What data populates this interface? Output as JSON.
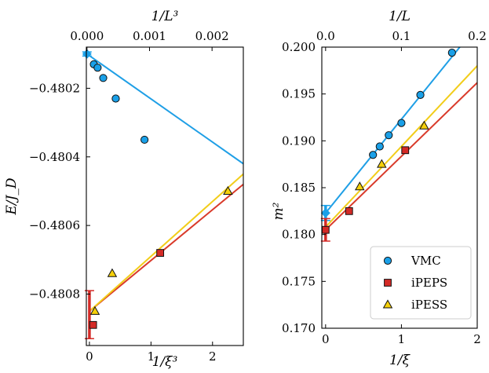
{
  "colors": {
    "vmc": "#1aa0e8",
    "ipeps": "#d42a26",
    "ipess": "#f5d00a",
    "vmc_line": "#1f9fe6",
    "ipeps_line": "#d93a2a",
    "ipess_line": "#f2cd1a"
  },
  "chart_data": [
    {
      "type": "scatter",
      "panel": "left",
      "ylabel": "E/J_D",
      "xlabel": "1/ξ³",
      "top_xlabel": "1/L³",
      "xlim": [
        -0.05,
        2.5
      ],
      "ylim": [
        -0.48095,
        -0.48008
      ],
      "top_xlim": [
        -1e-05,
        0.0025
      ],
      "x_ticks": [
        0,
        1,
        2
      ],
      "x_tick_labels": [
        "0",
        "1",
        "2"
      ],
      "top_ticks": [
        0.0,
        0.001,
        0.002
      ],
      "top_tick_labels": [
        "0.000",
        "0.001",
        "0.002"
      ],
      "y_ticks": [
        -0.4802,
        -0.4804,
        -0.4806,
        -0.4808
      ],
      "y_tick_labels": [
        "−0.4802",
        "−0.4804",
        "−0.4806",
        "−0.4808"
      ],
      "series": [
        {
          "name": "VMC",
          "marker": "circle",
          "axis": "top",
          "points": [
            [
              0.00011,
              -0.48013
            ],
            [
              0.00017,
              -0.48014
            ],
            [
              0.00026,
              -0.48017
            ],
            [
              0.00046,
              -0.48023
            ],
            [
              0.00092,
              -0.48035
            ]
          ],
          "fit": [
            [
              0.0,
              -0.4801
            ],
            [
              0.0025,
              -0.48042
            ]
          ],
          "extrapolated": {
            "x": 0.0,
            "y": -0.4801,
            "err": 6e-06
          }
        },
        {
          "name": "iPEPS",
          "marker": "square",
          "axis": "bottom",
          "points": [
            [
              0.06,
              -0.48089
            ],
            [
              1.15,
              -0.48068
            ]
          ],
          "fit": [
            [
              0.0,
              -0.48085
            ],
            [
              2.5,
              -0.48048
            ]
          ],
          "extrapolated": {
            "x": 0.0,
            "y": -0.48086,
            "err": 7e-05
          }
        },
        {
          "name": "iPESS",
          "marker": "triangle",
          "axis": "bottom",
          "points": [
            [
              0.09,
              -0.48085
            ],
            [
              0.37,
              -0.48074
            ],
            [
              2.25,
              -0.4805
            ]
          ],
          "fit": [
            [
              0.0,
              -0.48085
            ],
            [
              2.5,
              -0.48045
            ]
          ]
        }
      ]
    },
    {
      "type": "scatter",
      "panel": "right",
      "ylabel": "m²",
      "xlabel": "1/ξ",
      "top_xlabel": "1/L",
      "xlim": [
        -0.05,
        2.0
      ],
      "ylim": [
        0.17,
        0.2
      ],
      "top_xlim": [
        -0.005,
        0.2
      ],
      "x_ticks": [
        0,
        1,
        2
      ],
      "x_tick_labels": [
        "0",
        "1",
        "2"
      ],
      "top_ticks": [
        0.0,
        0.1,
        0.2
      ],
      "top_tick_labels": [
        "0.0",
        "0.1",
        "0.2"
      ],
      "y_ticks": [
        0.17,
        0.175,
        0.18,
        0.185,
        0.19,
        0.195,
        0.2
      ],
      "y_tick_labels": [
        "0.170",
        "0.175",
        "0.180",
        "0.185",
        "0.190",
        "0.195",
        "0.200"
      ],
      "series": [
        {
          "name": "VMC",
          "marker": "circle",
          "axis": "top",
          "points": [
            [
              0.0625,
              0.1885
            ],
            [
              0.0714,
              0.1894
            ],
            [
              0.0833,
              0.1906
            ],
            [
              0.1,
              0.1919
            ],
            [
              0.125,
              0.1949
            ],
            [
              0.1667,
              0.1994
            ]
          ],
          "fit": [
            [
              0.0,
              0.1823
            ],
            [
              0.18,
              0.2003
            ]
          ],
          "extrapolated": {
            "x": 0.0,
            "y": 0.1823,
            "err": 0.0008
          }
        },
        {
          "name": "iPEPS",
          "marker": "square",
          "axis": "bottom",
          "points": [
            [
              0.0,
              0.1805
            ],
            [
              0.31,
              0.1825
            ],
            [
              1.05,
              0.189
            ]
          ],
          "fit": [
            [
              0.0,
              0.1805
            ],
            [
              2.0,
              0.1962
            ]
          ],
          "extrapolated": {
            "x": 0.0,
            "y": 0.1805,
            "err": 0.0012
          }
        },
        {
          "name": "iPESS",
          "marker": "triangle",
          "axis": "bottom",
          "points": [
            [
              0.45,
              0.1851
            ],
            [
              0.74,
              0.1875
            ],
            [
              1.3,
              0.1916
            ]
          ],
          "fit": [
            [
              0.0,
              0.1808
            ],
            [
              2.0,
              0.198
            ]
          ]
        }
      ],
      "legend": {
        "position": "bottom-right",
        "entries": [
          "VMC",
          "iPEPS",
          "iPESS"
        ]
      }
    }
  ]
}
